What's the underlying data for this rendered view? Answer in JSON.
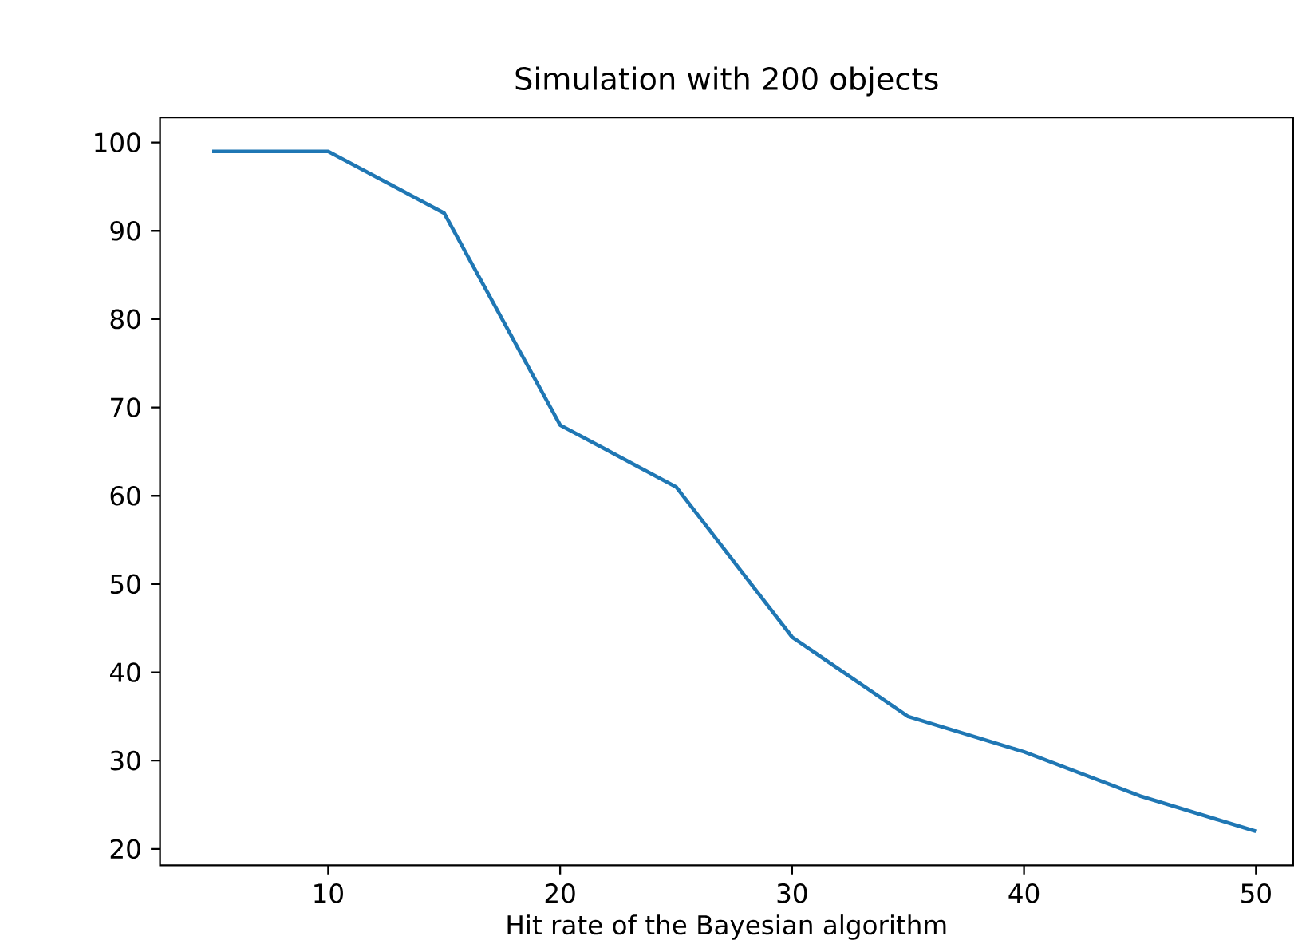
{
  "chart_data": {
    "type": "line",
    "title": "Simulation with 200 objects",
    "xlabel": "Hit rate of the Bayesian algorithm",
    "x": [
      5,
      10,
      15,
      20,
      25,
      30,
      35,
      40,
      45,
      50
    ],
    "values": [
      99,
      99,
      92,
      68,
      61,
      44,
      35,
      31,
      26,
      22
    ],
    "color": "#1f77b4",
    "xlim": [
      2.75,
      51.6
    ],
    "ylim": [
      18.15,
      102.85
    ],
    "xticks": [
      10,
      20,
      30,
      40,
      50
    ],
    "yticks": [
      20,
      30,
      40,
      50,
      60,
      70,
      80,
      90,
      100
    ]
  }
}
